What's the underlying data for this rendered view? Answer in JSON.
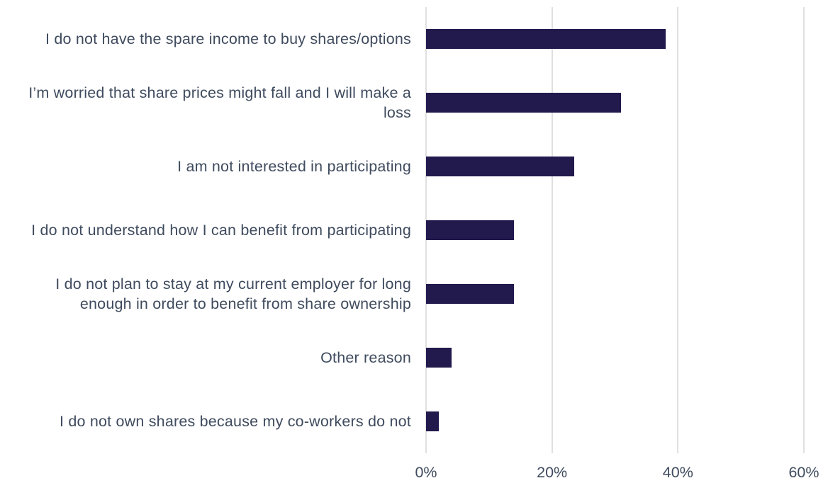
{
  "chart_data": {
    "type": "bar",
    "orientation": "horizontal",
    "categories": [
      "I do not have the spare income to buy shares/options",
      "I’m worried that share prices might fall and I will make a loss",
      "I am not interested in participating",
      "I do not understand how I can benefit from participating",
      "I do not plan to stay at my current employer for long enough in order to benefit from share ownership",
      "Other reason",
      "I do not own shares because my co-workers do not"
    ],
    "values": [
      38,
      31,
      23.5,
      14,
      14,
      4,
      2
    ],
    "color": "#22194d",
    "xlim": [
      0,
      60
    ],
    "xticks": [
      {
        "value": 0,
        "label": "0%"
      },
      {
        "value": 20,
        "label": "20%"
      },
      {
        "value": 40,
        "label": "40%"
      },
      {
        "value": 60,
        "label": "60%"
      }
    ],
    "grid": true
  }
}
